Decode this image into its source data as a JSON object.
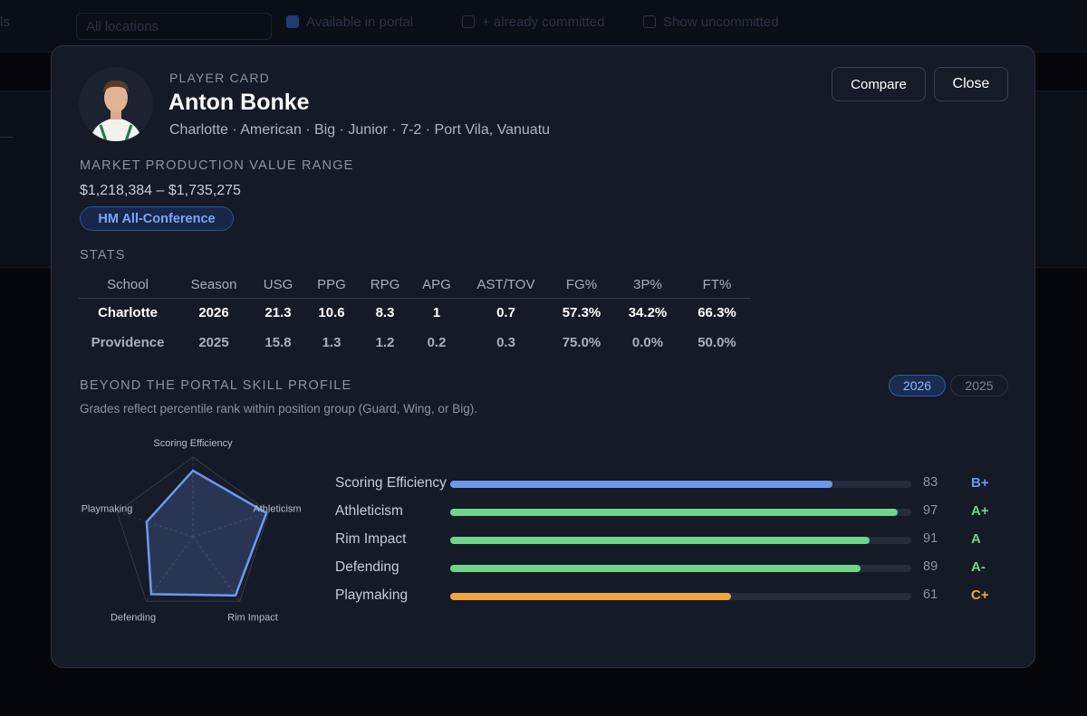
{
  "background": {
    "top_left_fragment": "ls",
    "location_select": "All locations",
    "filters": [
      "Available in portal",
      "+ already committed",
      "Show uncommitted"
    ],
    "left_fragment": "—"
  },
  "player": {
    "overline": "PLAYER CARD",
    "name": "Anton Bonke",
    "meta": "Charlotte · American · Big · Junior · 7-2 · Port Vila, Vanuatu",
    "avatar_icon": "player-photo"
  },
  "actions": {
    "compare_label": "Compare",
    "close_label": "Close"
  },
  "market": {
    "label": "MARKET PRODUCTION VALUE RANGE",
    "range": "$1,218,384 – $1,735,275",
    "badge": "HM All-Conference"
  },
  "stats": {
    "label": "STATS",
    "columns": [
      "School",
      "Season",
      "USG",
      "PPG",
      "RPG",
      "APG",
      "AST/TOV",
      "FG%",
      "3P%",
      "FT%"
    ],
    "rows": [
      [
        "Charlotte",
        "2026",
        "21.3",
        "10.6",
        "8.3",
        "1",
        "0.7",
        "57.3%",
        "34.2%",
        "66.3%"
      ],
      [
        "Providence",
        "2025",
        "15.8",
        "1.3",
        "1.2",
        "0.2",
        "0.3",
        "75.0%",
        "0.0%",
        "50.0%"
      ]
    ]
  },
  "skill_profile": {
    "label": "BEYOND THE PORTAL SKILL PROFILE",
    "note": "Grades reflect percentile rank within position group (Guard, Wing, or Big).",
    "years": [
      "2026",
      "2025"
    ],
    "active_year": "2026",
    "skills": [
      {
        "name": "Scoring Efficiency",
        "value": 83,
        "grade": "B+",
        "color": "#6f98ef"
      },
      {
        "name": "Athleticism",
        "value": 97,
        "grade": "A+",
        "color": "#6fd48a"
      },
      {
        "name": "Rim Impact",
        "value": 91,
        "grade": "A",
        "color": "#6fd48a"
      },
      {
        "name": "Defending",
        "value": 89,
        "grade": "A-",
        "color": "#6fd48a"
      },
      {
        "name": "Playmaking",
        "value": 61,
        "grade": "C+",
        "color": "#f0a640"
      }
    ]
  }
}
